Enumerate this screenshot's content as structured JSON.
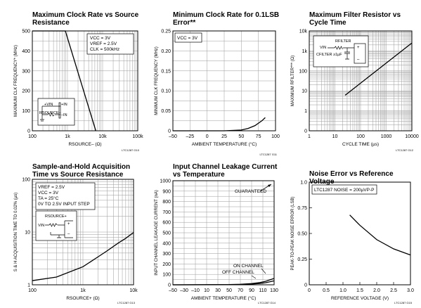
{
  "chart_data": [
    {
      "type": "line",
      "title": "Maximum Clock Rate vs Source Resistance",
      "xlabel": "RSOURCE– (Ω)",
      "ylabel": "MAXIMUM CLK FREQUENCY* (MHz)",
      "x_scale": "log",
      "xlim": [
        100,
        100000
      ],
      "ylim": [
        0,
        500
      ],
      "x_ticks": [
        100,
        1000,
        10000,
        100000
      ],
      "x_tick_labels": [
        "100",
        "1k",
        "10k",
        "100k"
      ],
      "y_ticks": [
        0,
        100,
        200,
        300,
        400,
        500
      ],
      "y_tick_labels": [
        "0",
        "100",
        "200",
        "300",
        "400",
        "500"
      ],
      "grid": true,
      "series": [
        {
          "x": [
            100,
            870,
            6400
          ],
          "y": [
            500,
            500,
            0
          ]
        }
      ],
      "annotations": [
        "VCC = 3V",
        "VREF = 2.5V",
        "CLK = 500kHz"
      ],
      "inset_labels": [
        "+VIN",
        "+IN",
        "RSOURCE–",
        "–IN"
      ],
      "code": "LTC1287 G10"
    },
    {
      "type": "line",
      "title": "Minimum Clock Rate for 0.1LSB Error**",
      "xlabel": "AMBIENT TEMPERATURE (°C)",
      "ylabel": "MINIMUM CLK FREQUENCY (MHz)",
      "xlim": [
        -50,
        100
      ],
      "ylim": [
        0,
        0.25
      ],
      "x_ticks": [
        -50,
        -25,
        0,
        25,
        50,
        75,
        100
      ],
      "x_tick_labels": [
        "–50",
        "–25",
        "0",
        "25",
        "50",
        "75",
        "100"
      ],
      "y_ticks": [
        0,
        0.05,
        0.1,
        0.15,
        0.2,
        0.25
      ],
      "y_tick_labels": [
        "0",
        "0.05",
        "0.10",
        "0.15",
        "0.20",
        "0.25"
      ],
      "grid": true,
      "series": [
        {
          "x": [
            -50,
            25,
            50,
            60,
            70,
            80,
            85
          ],
          "y": [
            0,
            0,
            0.002,
            0.006,
            0.013,
            0.025,
            0.033
          ]
        }
      ],
      "annotations": [
        "VCC = 3V"
      ],
      "code": "LTC1287 G11"
    },
    {
      "type": "line",
      "title": "Maximum Filter Resistor vs Cycle Time",
      "xlabel": "CYCLE TIME (µs)",
      "ylabel": "MAXIMUM RFILTER*** (Ω)",
      "x_scale": "log",
      "y_scale": "log",
      "xlim": [
        1,
        10000
      ],
      "ylim": [
        0,
        10000
      ],
      "x_ticks": [
        1,
        10,
        100,
        1000,
        10000
      ],
      "x_tick_labels": [
        "1",
        "10",
        "100",
        "1000",
        "10000"
      ],
      "y_ticks": [
        1,
        10,
        100,
        1000,
        10000
      ],
      "y_tick_labels": [
        "1",
        "10",
        "100",
        "1k",
        "10k"
      ],
      "y_zero_label": "0",
      "grid": true,
      "series": [
        {
          "x": [
            25,
            10000
          ],
          "y": [
            6,
            2500
          ]
        }
      ],
      "inset_labels": [
        "RFILTER",
        "VIN",
        "CFILTER ≥1µF",
        "+",
        "–"
      ],
      "code": "LTC1287 G12"
    },
    {
      "type": "line",
      "title": "Sample-and-Hold Acquisition Time vs Source Resistance",
      "xlabel": "RSOURCE+ (Ω)",
      "ylabel": "S & H ACQUISITION TIME TO 0.02% (µs)",
      "x_scale": "log",
      "y_scale": "log",
      "xlim": [
        100,
        10000
      ],
      "ylim": [
        1,
        100
      ],
      "x_ticks": [
        100,
        1000,
        10000
      ],
      "x_tick_labels": [
        "100",
        "1k",
        "10k"
      ],
      "y_ticks": [
        1,
        10,
        100
      ],
      "y_tick_labels": [
        "1",
        "10",
        "100"
      ],
      "grid": true,
      "series": [
        {
          "x": [
            100,
            300,
            1000,
            2000,
            3000,
            5000,
            7000,
            10000
          ],
          "y": [
            1.2,
            1.4,
            2.2,
            3.4,
            4.4,
            6.2,
            7.6,
            9.8
          ]
        }
      ],
      "annotations": [
        "VREF = 2.5V",
        "VCC = 3V",
        "TA = 25°C",
        "0V TO 2.5V INPUT STEP"
      ],
      "inset_labels": [
        "RSOURCE+",
        "VIN",
        "+",
        "–"
      ],
      "code": "LTC1287 G13"
    },
    {
      "type": "line",
      "title": "Input Channel Leakage Current vs Temperature",
      "xlabel": "AMBIENT TEMPERATURE (°C)",
      "ylabel": "INPUT CHANNEL LEAKAGE CURRENT (nA)",
      "xlim": [
        -50,
        130
      ],
      "ylim": [
        0,
        1000
      ],
      "x_ticks": [
        -50,
        -30,
        -10,
        10,
        30,
        50,
        70,
        90,
        110,
        130
      ],
      "x_tick_labels": [
        "–50",
        "–30",
        "–10",
        "10",
        "30",
        "50",
        "70",
        "90",
        "110",
        "130"
      ],
      "y_ticks": [
        0,
        100,
        200,
        300,
        400,
        500,
        600,
        700,
        800,
        900,
        1000
      ],
      "y_tick_labels": [
        "0",
        "100",
        "200",
        "300",
        "400",
        "500",
        "600",
        "700",
        "800",
        "900",
        "1000"
      ],
      "grid": true,
      "series": [
        {
          "name": "ON CHANNEL",
          "x": [
            -50,
            50,
            70,
            90,
            105,
            115,
            125,
            130
          ],
          "y": [
            0,
            2,
            5,
            12,
            22,
            34,
            52,
            62
          ]
        },
        {
          "name": "OFF CHANNEL",
          "x": [
            -50,
            50,
            70,
            90,
            105,
            115,
            125,
            130
          ],
          "y": [
            0,
            1,
            3,
            7,
            13,
            20,
            32,
            38
          ]
        }
      ],
      "annotations": [
        "GUARANTEED"
      ],
      "code": "LTC1287 G14"
    },
    {
      "type": "line",
      "title": "Noise Error vs Reference Voltage",
      "xlabel": "REFERENCE VOLTAGE (V)",
      "ylabel": "PEAK-TO-PEAK NOISE ERROR (LSB)",
      "xlim": [
        0,
        3
      ],
      "ylim": [
        0,
        1
      ],
      "x_ticks": [
        0,
        0.5,
        1,
        1.5,
        2,
        2.5,
        3
      ],
      "x_tick_labels": [
        "0",
        "0.5",
        "1.0",
        "1.5",
        "2.0",
        "2.5",
        "3.0"
      ],
      "y_ticks": [
        0,
        0.25,
        0.5,
        0.75,
        1
      ],
      "y_tick_labels": [
        "0",
        "0.25",
        "0.50",
        "0.75",
        "1.0"
      ],
      "grid": false,
      "series": [
        {
          "x": [
            1.2,
            1.5,
            2.0,
            2.5,
            3.0
          ],
          "y": [
            0.68,
            0.58,
            0.44,
            0.35,
            0.29
          ]
        }
      ],
      "annotations": [
        "LTC1287 NOISE = 200µVP-P"
      ],
      "code": "LTC1287 G15"
    }
  ],
  "colors": {
    "curve": "#000000",
    "grid": "#9a9a9a",
    "frame": "#000000"
  }
}
